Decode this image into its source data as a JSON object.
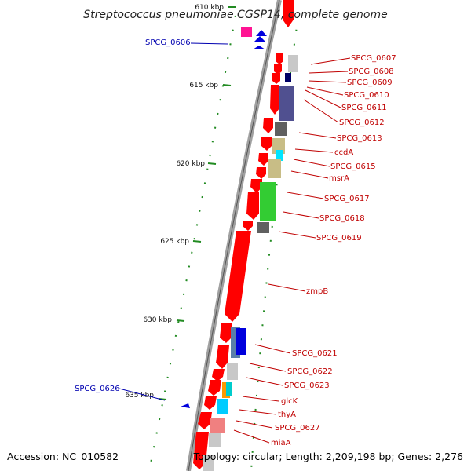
{
  "title": "Streptococcus pneumoniae CGSP14, complete genome",
  "footer": {
    "accession": "Accession: NC_010582",
    "topology": "Topology: circular; Length: 2,209,198 bp; Genes: 2,276"
  },
  "colors": {
    "forward_gene": "#ff0000",
    "backbone": "#808080",
    "tick": "#228b22",
    "label_red": "#c00000",
    "label_blue": "#0000b0"
  },
  "scale_ticks": [
    {
      "label": "610 kbp"
    },
    {
      "label": "615 kbp"
    },
    {
      "label": "620 kbp"
    },
    {
      "label": "625 kbp"
    },
    {
      "label": "630 kbp"
    },
    {
      "label": "635 kbp"
    }
  ],
  "gene_labels": [
    {
      "text": "SPCG_0606",
      "strand": "reverse"
    },
    {
      "text": "SPCG_0607",
      "strand": "forward"
    },
    {
      "text": "SPCG_0608",
      "strand": "forward"
    },
    {
      "text": "SPCG_0609",
      "strand": "forward"
    },
    {
      "text": "SPCG_0610",
      "strand": "forward"
    },
    {
      "text": "SPCG_0611",
      "strand": "forward"
    },
    {
      "text": "SPCG_0612",
      "strand": "forward"
    },
    {
      "text": "SPCG_0613",
      "strand": "forward"
    },
    {
      "text": "ccdA",
      "strand": "forward"
    },
    {
      "text": "SPCG_0615",
      "strand": "forward"
    },
    {
      "text": "msrA",
      "strand": "forward"
    },
    {
      "text": "SPCG_0617",
      "strand": "forward"
    },
    {
      "text": "SPCG_0618",
      "strand": "forward"
    },
    {
      "text": "SPCG_0619",
      "strand": "forward"
    },
    {
      "text": "zmpB",
      "strand": "forward"
    },
    {
      "text": "SPCG_0621",
      "strand": "forward"
    },
    {
      "text": "SPCG_0622",
      "strand": "forward"
    },
    {
      "text": "SPCG_0623",
      "strand": "forward"
    },
    {
      "text": "glcK",
      "strand": "forward"
    },
    {
      "text": "thyA",
      "strand": "forward"
    },
    {
      "text": "SPCG_0627",
      "strand": "forward"
    },
    {
      "text": "miaA",
      "strand": "forward"
    },
    {
      "text": "SPCG_0626",
      "strand": "reverse"
    }
  ]
}
